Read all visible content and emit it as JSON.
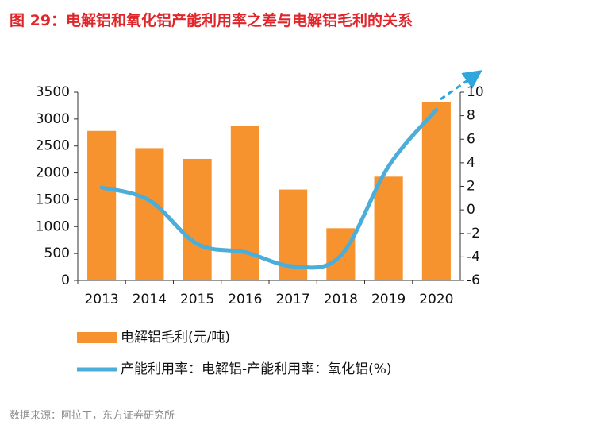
{
  "chart_data": {
    "type": "bar-line",
    "title": "图 29：电解铝和氧化铝产能利用率之差与电解铝毛利的关系",
    "source": "数据来源：阿拉丁，东方证券研究所",
    "categories": [
      "2013",
      "2014",
      "2015",
      "2016",
      "2017",
      "2018",
      "2019",
      "2020"
    ],
    "series": [
      {
        "name": "电解铝毛利(元/吨)",
        "type": "bar",
        "color": "#f7932f",
        "values": [
          2780,
          2460,
          2260,
          2870,
          1690,
          970,
          1930,
          3310
        ]
      },
      {
        "name": "产能利用率：电解铝-产能利用率：氧化铝(%)",
        "type": "line",
        "axis": "y2",
        "color": "#4badd9",
        "values": [
          1.9,
          0.8,
          -2.9,
          -3.6,
          -4.8,
          -3.9,
          3.7,
          8.5
        ]
      }
    ],
    "ylim": [
      0,
      3500
    ],
    "yticks": [
      0,
      500,
      1000,
      1500,
      2000,
      2500,
      3000,
      3500
    ],
    "y2lim": [
      -6,
      10
    ],
    "y2ticks": [
      -6,
      -4,
      -2,
      0,
      2,
      4,
      6,
      8,
      10
    ]
  }
}
